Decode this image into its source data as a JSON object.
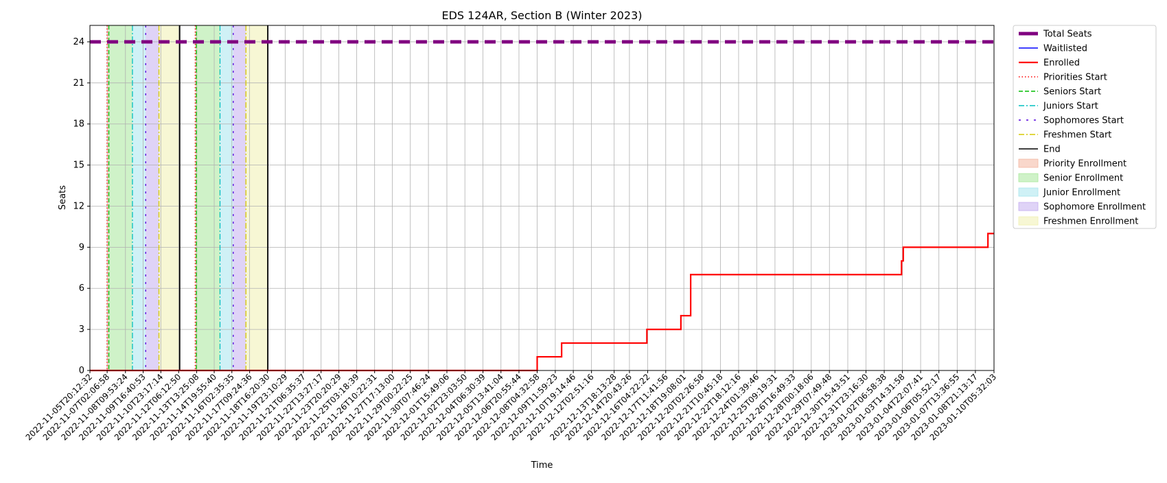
{
  "chart_data": {
    "type": "line",
    "title": "EDS 124AR, Section B (Winter 2023)",
    "xlabel": "Time",
    "ylabel": "Seats",
    "ylim": [
      0,
      25.2
    ],
    "y_ticks": [
      0,
      3,
      6,
      9,
      12,
      15,
      18,
      21,
      24
    ],
    "y_tick_labels": [
      "0",
      "3",
      "6",
      "9",
      "12",
      "15",
      "18",
      "21",
      "24"
    ],
    "grid": true,
    "legend_position": "outside-right",
    "x_ticks": [
      "2022-11-05T20:12:32",
      "2022-11-07T02:06:58",
      "2022-11-08T09:53:24",
      "2022-11-09T16:40:53",
      "2022-11-10T23:17:14",
      "2022-11-12T06:12:50",
      "2022-11-13T13:25:08",
      "2022-11-14T19:55:40",
      "2022-11-16T02:35:35",
      "2022-11-17T09:24:36",
      "2022-11-18T16:20:30",
      "2022-11-19T23:10:29",
      "2022-11-21T06:35:37",
      "2022-11-22T13:27:17",
      "2022-11-23T20:20:29",
      "2022-11-25T03:18:39",
      "2022-11-26T10:22:31",
      "2022-11-27T17:13:00",
      "2022-11-29T00:22:25",
      "2022-11-30T07:46:24",
      "2022-12-01T15:49:06",
      "2022-12-02T23:03:50",
      "2022-12-04T06:30:39",
      "2022-12-05T13:41:04",
      "2022-12-06T20:55:44",
      "2022-12-08T04:32:58",
      "2022-12-09T11:59:23",
      "2022-12-10T19:14:46",
      "2022-12-12T02:51:16",
      "2022-12-13T18:13:28",
      "2022-12-14T20:43:26",
      "2022-12-16T04:22:22",
      "2022-12-17T11:41:56",
      "2022-12-18T19:08:01",
      "2022-12-20T02:26:58",
      "2022-12-21T10:45:18",
      "2022-12-22T18:12:16",
      "2022-12-24T01:39:46",
      "2022-12-25T09:19:31",
      "2022-12-26T16:49:33",
      "2022-12-28T00:18:06",
      "2022-12-29T07:49:48",
      "2022-12-30T15:43:51",
      "2022-12-31T23:16:30",
      "2023-01-02T06:58:38",
      "2023-01-03T14:31:58",
      "2023-01-04T22:07:41",
      "2023-01-06T05:52:17",
      "2023-01-07T13:36:55",
      "2023-01-08T21:13:17",
      "2023-01-10T05:32:03"
    ],
    "x_range": [
      "2022-11-05T20:12:32",
      "2023-01-10T05:32:03"
    ],
    "series": [
      {
        "name": "Total Seats",
        "color": "#800080",
        "style": "dashed-thick",
        "points": [
          {
            "x": "2022-11-05T20:12:32",
            "y": 24
          },
          {
            "x": "2023-01-10T05:32:03",
            "y": 24
          }
        ]
      },
      {
        "name": "Waitlisted",
        "color": "#0000ff",
        "style": "solid-thin",
        "points": [
          {
            "x": "2022-11-05T20:12:32",
            "y": 0
          },
          {
            "x": "2023-01-10T05:32:03",
            "y": 0
          }
        ]
      },
      {
        "name": "Enrolled",
        "color": "#ff0000",
        "style": "step",
        "points": [
          {
            "x": "2022-11-05T20:12:32",
            "y": 0
          },
          {
            "x": "2022-12-08T04:32:58",
            "y": 1
          },
          {
            "x": "2022-12-09T23:00:00",
            "y": 2
          },
          {
            "x": "2022-12-16T03:00:00",
            "y": 3
          },
          {
            "x": "2022-12-18T14:00:00",
            "y": 4
          },
          {
            "x": "2022-12-19T07:00:00",
            "y": 7
          },
          {
            "x": "2023-01-03T13:00:00",
            "y": 8
          },
          {
            "x": "2023-01-03T16:00:00",
            "y": 9
          },
          {
            "x": "2023-01-09T19:00:00",
            "y": 10
          },
          {
            "x": "2023-01-10T05:32:03",
            "y": 10
          }
        ]
      }
    ],
    "phase_lines": [
      {
        "name": "Priorities Start",
        "color": "#ff0000",
        "style": "dotted",
        "x": [
          "2022-11-07T02:00:00",
          "2022-11-13T11:00:00"
        ]
      },
      {
        "name": "Seniors Start",
        "color": "#00bb00",
        "style": "dashed",
        "x": [
          "2022-11-07T05:00:00",
          "2022-11-13T13:00:00"
        ]
      },
      {
        "name": "Juniors Start",
        "color": "#00bfbf",
        "style": "dashdot",
        "x": [
          "2022-11-08T22:00:00",
          "2022-11-15T06:00:00"
        ]
      },
      {
        "name": "Sophomores Start",
        "color": "#5500dd",
        "style": "loosedash",
        "x": [
          "2022-11-09T21:00:00",
          "2022-11-16T05:00:00"
        ]
      },
      {
        "name": "Freshmen Start",
        "color": "#d6c800",
        "style": "dashdot",
        "x": [
          "2022-11-10T20:00:00",
          "2022-11-17T03:00:00"
        ]
      },
      {
        "name": "End",
        "color": "#000000",
        "style": "solid",
        "x": [
          "2022-11-12T08:00:00",
          "2022-11-18T17:00:00"
        ]
      }
    ],
    "spans": [
      {
        "name": "Priority Enrollment",
        "color": "#f4b7a1",
        "ranges": [
          [
            "2022-11-07T02:00:00",
            "2022-11-07T05:00:00"
          ],
          [
            "2022-11-13T11:00:00",
            "2022-11-13T13:00:00"
          ]
        ]
      },
      {
        "name": "Senior Enrollment",
        "color": "#a8e89b",
        "ranges": [
          [
            "2022-11-07T05:00:00",
            "2022-11-08T22:00:00"
          ],
          [
            "2022-11-13T13:00:00",
            "2022-11-15T06:00:00"
          ]
        ]
      },
      {
        "name": "Junior Enrollment",
        "color": "#a8e6ee",
        "ranges": [
          [
            "2022-11-08T22:00:00",
            "2022-11-09T21:00:00"
          ],
          [
            "2022-11-15T06:00:00",
            "2022-11-16T05:00:00"
          ]
        ]
      },
      {
        "name": "Sophomore Enrollment",
        "color": "#c5aef0",
        "ranges": [
          [
            "2022-11-09T21:00:00",
            "2022-11-10T20:00:00"
          ],
          [
            "2022-11-16T05:00:00",
            "2022-11-17T03:00:00"
          ]
        ]
      },
      {
        "name": "Freshmen Enrollment",
        "color": "#f1f1b0",
        "ranges": [
          [
            "2022-11-10T20:00:00",
            "2022-11-12T08:00:00"
          ],
          [
            "2022-11-17T03:00:00",
            "2022-11-18T17:00:00"
          ]
        ]
      }
    ],
    "legend": [
      "Total Seats",
      "Waitlisted",
      "Enrolled",
      "Priorities Start",
      "Seniors Start",
      "Juniors Start",
      "Sophomores Start",
      "Freshmen Start",
      "End",
      "Priority Enrollment",
      "Senior Enrollment",
      "Junior Enrollment",
      "Sophomore Enrollment",
      "Freshmen Enrollment"
    ]
  }
}
